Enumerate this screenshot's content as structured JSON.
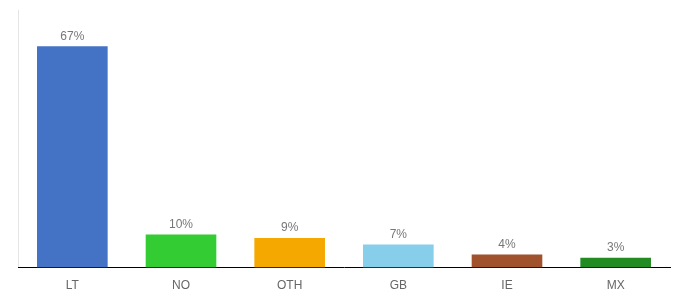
{
  "chart_data": {
    "type": "bar",
    "categories": [
      "LT",
      "NO",
      "OTH",
      "GB",
      "IE",
      "MX"
    ],
    "values": [
      67,
      10,
      9,
      7,
      4,
      3
    ],
    "value_labels": [
      "67%",
      "10%",
      "9%",
      "7%",
      "4%",
      "3%"
    ],
    "colors": [
      "#4472c4",
      "#33cc33",
      "#f5a800",
      "#87ceeb",
      "#a0522d",
      "#228b22"
    ],
    "ylim": [
      0,
      78
    ],
    "grid": false,
    "data_labels": true,
    "tick_labels": "x"
  }
}
